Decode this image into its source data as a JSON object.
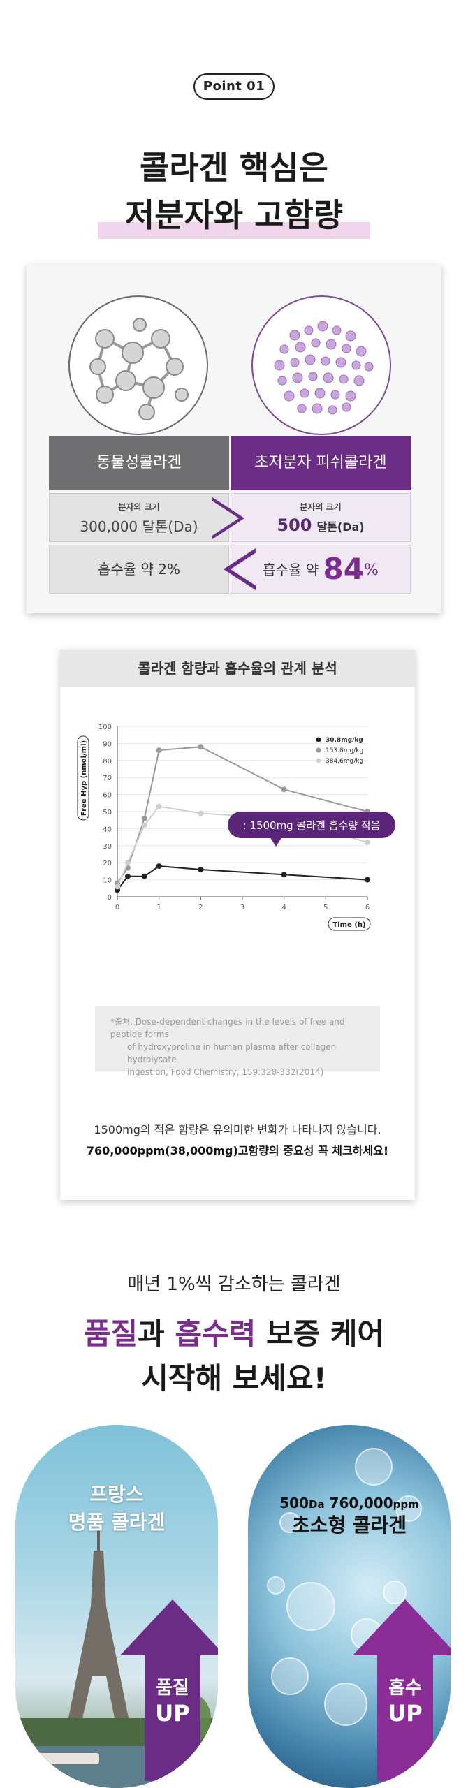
{
  "badge": {
    "label": "Point 01"
  },
  "hero": {
    "line1": "콜라겐 핵심은",
    "line2": "저분자와 고함량"
  },
  "compare": {
    "left_header": "동물성콜라겐",
    "right_header": "초저분자 피쉬콜라겐",
    "size_caption": "분자의 크기",
    "left_size": "300,000 달톤(Da)",
    "right_size_num": "500",
    "right_size_unit": "달톤(Da)",
    "left_absorb": "흡수율 약 2%",
    "right_absorb_prefix": "흡수율 약",
    "right_absorb_value": "84",
    "right_absorb_pct": "%",
    "colors": {
      "left": "#6f6e71",
      "right": "#6b2c86"
    }
  },
  "chart_card": {
    "title": "콜라겐 함량과 흡수율의 관계 분석",
    "callout": ": 1500mg 콜라겐 흡수량 적음",
    "source_line1": "*출처. Dose-dependent changes in the levels of free and peptide forms",
    "source_line2": "of hydroxyproline in human plasma after collagen hydrolysate",
    "source_line3": "ingestion, Food Chemistry, 159:328-332(2014)",
    "note1": "1500mg의 적은 함량은 유의미한 변화가 나타나지 않습니다.",
    "note2": "760,000ppm(38,000mg)고함량의 중요성 꼭 체크하세요!"
  },
  "chart_data": {
    "type": "line",
    "xlabel": "Time (h)",
    "ylabel": "Free Hyp (nmol/ml)",
    "xlim": [
      0,
      6
    ],
    "ylim": [
      0,
      100
    ],
    "x_ticks": [
      "0",
      "1",
      "2",
      "3",
      "4",
      "5",
      "6"
    ],
    "y_ticks": [
      "0",
      "10",
      "20",
      "30",
      "40",
      "50",
      "60",
      "70",
      "80",
      "90",
      "100"
    ],
    "legend_position": "top-right",
    "series": [
      {
        "name": "30.8mg/kg",
        "color": "#222222",
        "x": [
          0,
          0.25,
          0.65,
          1,
          2,
          4,
          6
        ],
        "y": [
          4,
          12,
          12,
          18,
          16,
          13,
          10
        ]
      },
      {
        "name": "153.8mg/kg",
        "color": "#9a9a9a",
        "x": [
          0,
          0.25,
          0.65,
          1,
          2,
          4,
          6
        ],
        "y": [
          8,
          17,
          46,
          86,
          88,
          63,
          50
        ]
      },
      {
        "name": "384.6mg/kg",
        "color": "#cfcfcf",
        "x": [
          0,
          0.25,
          0.65,
          1,
          2,
          4,
          6
        ],
        "y": [
          6,
          20,
          42,
          53,
          49,
          46,
          32
        ]
      }
    ]
  },
  "bottom": {
    "subheading": "매년 1%씩 감소하는 콜라겐",
    "line1_part1": "품질",
    "line1_part2": "과 ",
    "line1_part3": "흡수력",
    "line1_part4": " 보증 케어",
    "line2": "시작해 보세요!",
    "left_capsule_line1": "프랑스",
    "left_capsule_line2": "명품 콜라겐",
    "left_up_line1": "품질",
    "left_up_line2": "UP",
    "right_capsule_num1": "500",
    "right_capsule_unit1": "Da",
    "right_capsule_num2": " 760,000",
    "right_capsule_unit2": "ppm",
    "right_capsule_line2": "초소형 콜라겐",
    "right_up_line1": "흡수",
    "right_up_line2": "UP"
  }
}
